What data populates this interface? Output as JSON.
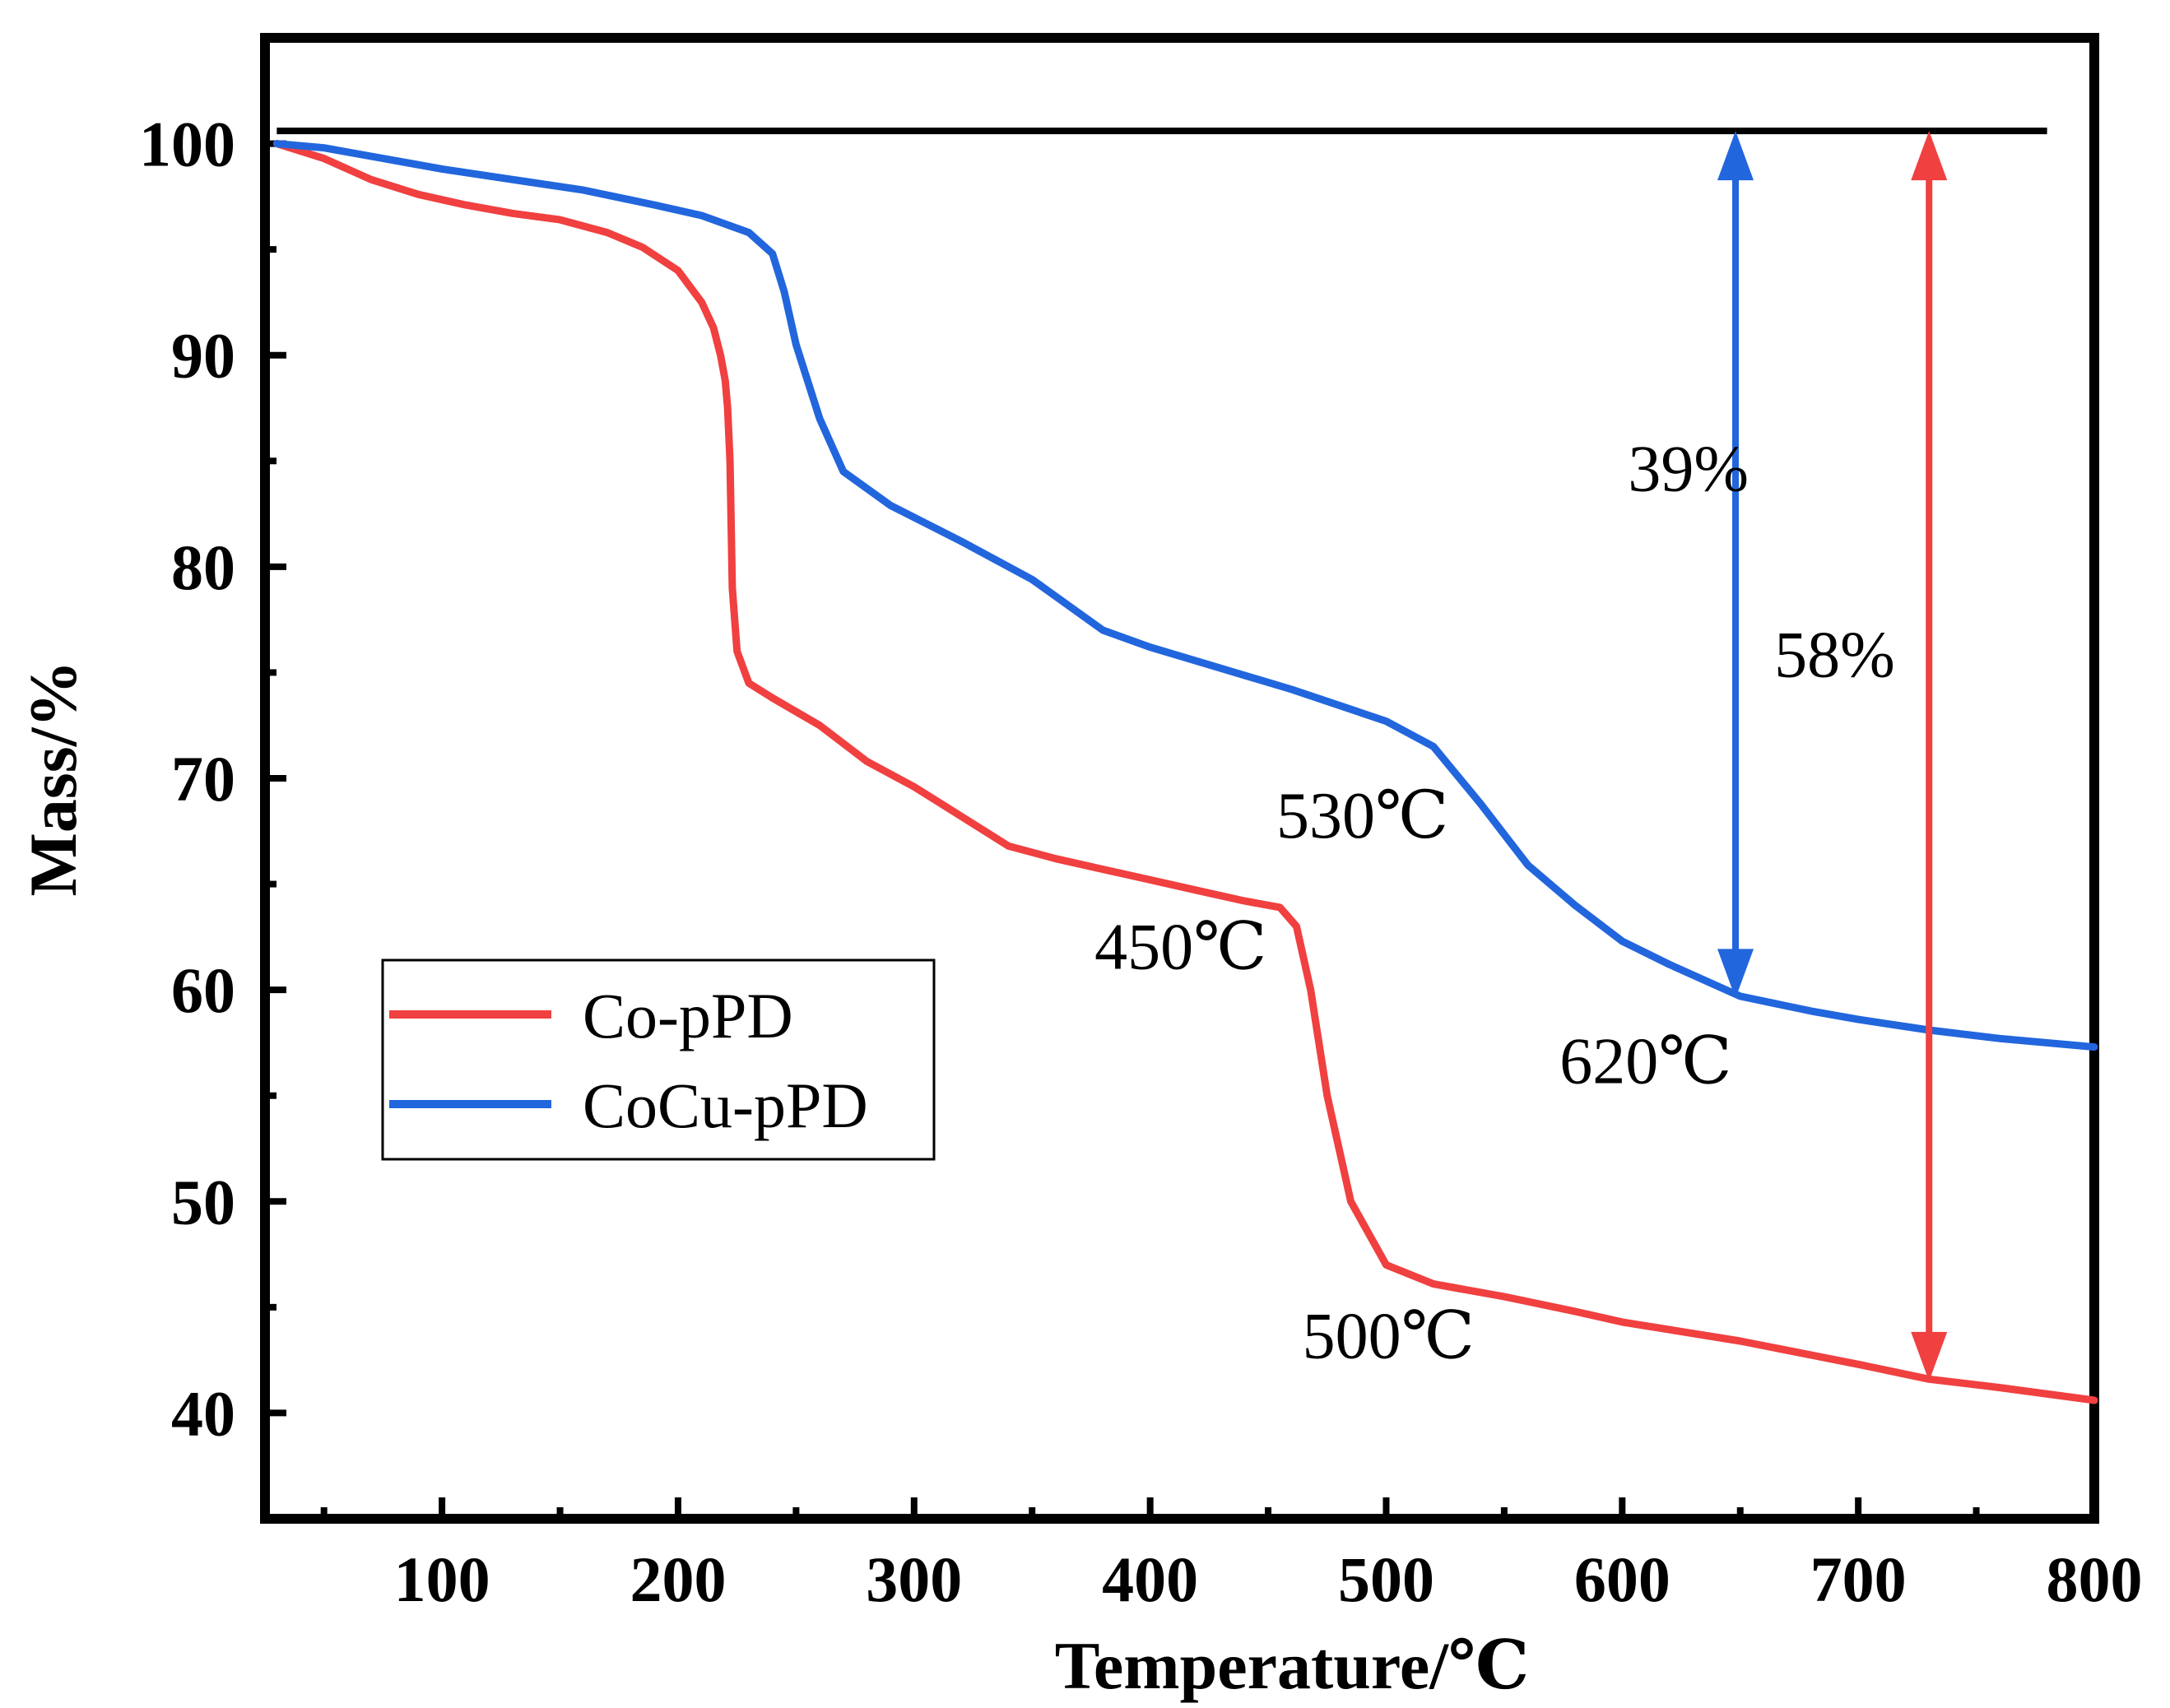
{
  "chart_data": {
    "type": "line",
    "title": "",
    "xlabel": "Temperature/℃",
    "ylabel": "Mass/%",
    "xlim": [
      25,
      800
    ],
    "ylim": [
      35,
      105
    ],
    "xticks": [
      100,
      200,
      300,
      400,
      500,
      600,
      700,
      800
    ],
    "yticks": [
      40,
      50,
      60,
      70,
      80,
      90,
      100
    ],
    "xtick_labels": [
      "100",
      "200",
      "300",
      "400",
      "500",
      "600",
      "700",
      "800"
    ],
    "ytick_labels": [
      "40",
      "50",
      "60",
      "70",
      "80",
      "90",
      "100"
    ],
    "grid": false,
    "legend_position": "middle-left",
    "series": [
      {
        "name": "Co-pPD",
        "color": "#f04040",
        "x": [
          30,
          50,
          70,
          90,
          110,
          130,
          150,
          170,
          185,
          200,
          210,
          215,
          218,
          220,
          221,
          222,
          223,
          225,
          230,
          240,
          260,
          280,
          300,
          320,
          340,
          360,
          380,
          400,
          420,
          440,
          455,
          462,
          468,
          475,
          485,
          500,
          520,
          550,
          580,
          600,
          650,
          700,
          730,
          760,
          800
        ],
        "y": [
          100,
          99.3,
          98.3,
          97.6,
          97.1,
          96.7,
          96.4,
          95.8,
          95.1,
          94,
          92.5,
          91.3,
          90,
          88.8,
          87.5,
          85,
          79,
          76,
          74.5,
          73.8,
          72.5,
          70.8,
          69.6,
          68.2,
          66.8,
          66.2,
          65.7,
          65.2,
          64.7,
          64.2,
          63.9,
          63,
          60,
          55,
          50,
          47,
          46.1,
          45.5,
          44.8,
          44.3,
          43.4,
          42.3,
          41.6,
          41.2,
          40.6
        ]
      },
      {
        "name": "CoCu-pPD",
        "color": "#2266dd",
        "x": [
          30,
          50,
          70,
          100,
          130,
          160,
          190,
          210,
          230,
          240,
          245,
          250,
          260,
          270,
          290,
          320,
          350,
          380,
          400,
          430,
          460,
          500,
          520,
          540,
          560,
          580,
          600,
          620,
          650,
          680,
          700,
          730,
          760,
          800
        ],
        "y": [
          100,
          99.8,
          99.4,
          98.8,
          98.3,
          97.8,
          97.1,
          96.6,
          95.8,
          94.8,
          93,
          90.5,
          87,
          84.5,
          82.9,
          81.2,
          79.4,
          77,
          76.2,
          75.2,
          74.2,
          72.7,
          71.5,
          68.8,
          65.9,
          64,
          62.3,
          61.2,
          59.7,
          59,
          58.6,
          58.1,
          57.7,
          57.3
        ]
      }
    ],
    "reference_line": {
      "y": 100.6,
      "x_range": [
        30,
        780
      ]
    },
    "annotations": [
      {
        "text": "530℃",
        "x": 490,
        "y": 67.2
      },
      {
        "text": "450℃",
        "x": 413,
        "y": 61
      },
      {
        "text": "620℃",
        "x": 610,
        "y": 55.6
      },
      {
        "text": "500℃",
        "x": 501,
        "y": 42.6
      },
      {
        "text": "39%",
        "x": 628,
        "y": 74.5,
        "color": "#2266dd",
        "y_label_pos": 83.6
      },
      {
        "text": "58%",
        "x": 690,
        "y": 71.3,
        "color": "#f04040",
        "y_label_pos": 74.8
      }
    ],
    "mass_loss_arrows": [
      {
        "label": "39%",
        "x": 648,
        "y_top": 100.6,
        "y_bottom": 59.6,
        "color": "#2266dd"
      },
      {
        "label": "58%",
        "x": 730,
        "y_top": 100.6,
        "y_bottom": 41.5,
        "color": "#f04040"
      }
    ]
  }
}
